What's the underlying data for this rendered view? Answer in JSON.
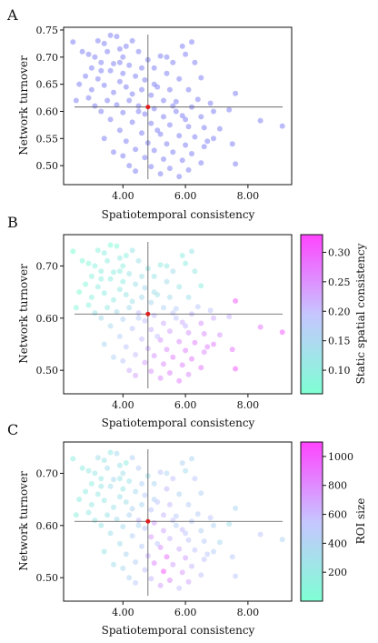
{
  "chart_data": [
    {
      "panel_label": "A",
      "type": "scatter",
      "xlabel": "Spatiotemporal consistency",
      "ylabel": "Network turnover",
      "xlim": [
        2.1,
        9.4
      ],
      "ylim": [
        0.465,
        0.755
      ],
      "xticks": [
        4.0,
        6.0,
        8.0
      ],
      "xtick_labels": [
        "4.00",
        "6.00",
        "8.00"
      ],
      "yticks": [
        0.5,
        0.55,
        0.6,
        0.65,
        0.7,
        0.75
      ],
      "ytick_labels": [
        "0.50",
        "0.55",
        "0.60",
        "0.65",
        "0.70",
        "0.75"
      ],
      "point_color": "#3b3bf0",
      "mean_marker": {
        "x": 4.8,
        "y": 0.608,
        "color": "#e02020"
      },
      "crosshair": {
        "x": 4.8,
        "y": 0.608,
        "color": "#555555"
      }
    },
    {
      "panel_label": "B",
      "type": "scatter",
      "xlabel": "Spatiotemporal consistency",
      "ylabel": "Network turnover",
      "xlim": [
        2.1,
        9.4
      ],
      "ylim": [
        0.455,
        0.76
      ],
      "xticks": [
        4.0,
        6.0,
        8.0
      ],
      "xtick_labels": [
        "4.00",
        "6.00",
        "8.00"
      ],
      "yticks": [
        0.5,
        0.6,
        0.7
      ],
      "ytick_labels": [
        "0.50",
        "0.60",
        "0.70"
      ],
      "mean_marker": {
        "x": 4.8,
        "y": 0.608,
        "color": "#e02020"
      },
      "crosshair": {
        "x": 4.8,
        "y": 0.608,
        "color": "#555555"
      },
      "colorbar": {
        "label": "Static spatial consistency",
        "range": [
          0.06,
          0.33
        ],
        "ticks": [
          0.1,
          0.15,
          0.2,
          0.25,
          0.3
        ],
        "tick_labels": [
          "0.10",
          "0.15",
          "0.20",
          "0.25",
          "0.30"
        ],
        "color_low": "#7fffd4",
        "color_high": "#ff44ff"
      }
    },
    {
      "panel_label": "C",
      "type": "scatter",
      "xlabel": "Spatiotemporal consistency",
      "ylabel": "Network turnover",
      "xlim": [
        2.1,
        9.4
      ],
      "ylim": [
        0.455,
        0.76
      ],
      "xticks": [
        4.0,
        6.0,
        8.0
      ],
      "xtick_labels": [
        "4.00",
        "6.00",
        "8.00"
      ],
      "yticks": [
        0.5,
        0.6,
        0.7
      ],
      "ytick_labels": [
        "0.50",
        "0.60",
        "0.70"
      ],
      "mean_marker": {
        "x": 4.8,
        "y": 0.608,
        "color": "#e02020"
      },
      "crosshair": {
        "x": 4.8,
        "y": 0.608,
        "color": "#555555"
      },
      "colorbar": {
        "label": "ROI size",
        "range": [
          0,
          1100
        ],
        "ticks": [
          200,
          400,
          600,
          800,
          1000
        ],
        "tick_labels": [
          "200",
          "400",
          "600",
          "800",
          "1000"
        ],
        "color_low": "#7fffd4",
        "color_high": "#ff44ff"
      }
    }
  ],
  "scatter_points": [
    [
      2.4,
      0.728,
      0.06,
      150
    ],
    [
      3.2,
      0.73,
      0.09,
      300
    ],
    [
      3.4,
      0.725,
      0.1,
      250
    ],
    [
      3.6,
      0.74,
      0.07,
      200
    ],
    [
      3.8,
      0.738,
      0.08,
      350
    ],
    [
      4.3,
      0.73,
      0.12,
      420
    ],
    [
      4.1,
      0.72,
      0.09,
      180
    ],
    [
      3.9,
      0.715,
      0.11,
      260
    ],
    [
      3.5,
      0.71,
      0.1,
      310
    ],
    [
      4.5,
      0.71,
      0.13,
      450
    ],
    [
      2.9,
      0.705,
      0.08,
      200
    ],
    [
      3.1,
      0.7,
      0.09,
      230
    ],
    [
      4.0,
      0.7,
      0.1,
      300
    ],
    [
      5.2,
      0.702,
      0.11,
      520
    ],
    [
      5.9,
      0.72,
      0.1,
      400
    ],
    [
      6.2,
      0.728,
      0.12,
      380
    ],
    [
      6.0,
      0.705,
      0.1,
      330
    ],
    [
      5.6,
      0.69,
      0.14,
      560
    ],
    [
      3.3,
      0.69,
      0.1,
      210
    ],
    [
      3.7,
      0.688,
      0.1,
      350
    ],
    [
      4.2,
      0.685,
      0.12,
      270
    ],
    [
      4.6,
      0.68,
      0.13,
      420
    ],
    [
      3.0,
      0.68,
      0.09,
      180
    ],
    [
      5.0,
      0.68,
      0.12,
      380
    ],
    [
      6.3,
      0.69,
      0.11,
      500
    ],
    [
      3.6,
      0.675,
      0.1,
      300
    ],
    [
      4.0,
      0.67,
      0.1,
      250
    ],
    [
      2.8,
      0.665,
      0.08,
      160
    ],
    [
      5.4,
      0.67,
      0.14,
      600
    ],
    [
      4.4,
      0.665,
      0.13,
      340
    ],
    [
      3.2,
      0.66,
      0.1,
      230
    ],
    [
      3.9,
      0.655,
      0.11,
      280
    ],
    [
      4.7,
      0.658,
      0.15,
      480
    ],
    [
      5.8,
      0.66,
      0.12,
      400
    ],
    [
      6.5,
      0.662,
      0.1,
      420
    ],
    [
      2.6,
      0.65,
      0.07,
      150
    ],
    [
      3.4,
      0.648,
      0.1,
      230
    ],
    [
      4.1,
      0.645,
      0.12,
      300
    ],
    [
      5.1,
      0.645,
      0.13,
      520
    ],
    [
      5.5,
      0.64,
      0.14,
      580
    ],
    [
      6.1,
      0.64,
      0.13,
      460
    ],
    [
      3.0,
      0.64,
      0.09,
      210
    ],
    [
      3.7,
      0.635,
      0.11,
      270
    ],
    [
      4.3,
      0.632,
      0.13,
      400
    ],
    [
      4.9,
      0.63,
      0.15,
      520
    ],
    [
      2.5,
      0.62,
      0.08,
      140
    ],
    [
      2.9,
      0.625,
      0.09,
      200
    ],
    [
      3.5,
      0.62,
      0.11,
      260
    ],
    [
      4.2,
      0.62,
      0.14,
      390
    ],
    [
      5.3,
      0.62,
      0.16,
      600
    ],
    [
      5.7,
      0.618,
      0.17,
      480
    ],
    [
      6.4,
      0.622,
      0.18,
      450
    ],
    [
      6.8,
      0.615,
      0.19,
      520
    ],
    [
      7.6,
      0.633,
      0.3,
      380
    ],
    [
      3.1,
      0.61,
      0.12,
      230
    ],
    [
      3.8,
      0.612,
      0.14,
      320
    ],
    [
      4.5,
      0.61,
      0.2,
      600
    ],
    [
      5.0,
      0.605,
      0.2,
      700
    ],
    [
      5.6,
      0.61,
      0.19,
      560
    ],
    [
      6.2,
      0.608,
      0.21,
      480
    ],
    [
      6.9,
      0.6,
      0.22,
      410
    ],
    [
      7.4,
      0.603,
      0.21,
      300
    ],
    [
      8.4,
      0.583,
      0.27,
      520
    ],
    [
      9.1,
      0.573,
      0.3,
      400
    ],
    [
      3.3,
      0.6,
      0.14,
      240
    ],
    [
      4.0,
      0.598,
      0.16,
      330
    ],
    [
      4.7,
      0.595,
      0.2,
      500
    ],
    [
      5.3,
      0.59,
      0.22,
      660
    ],
    [
      5.9,
      0.592,
      0.22,
      580
    ],
    [
      6.5,
      0.59,
      0.24,
      440
    ],
    [
      3.6,
      0.585,
      0.15,
      290
    ],
    [
      4.3,
      0.58,
      0.19,
      420
    ],
    [
      4.9,
      0.578,
      0.21,
      720
    ],
    [
      5.5,
      0.575,
      0.23,
      600
    ],
    [
      6.1,
      0.572,
      0.24,
      520
    ],
    [
      6.6,
      0.57,
      0.25,
      480
    ],
    [
      7.1,
      0.568,
      0.24,
      360
    ],
    [
      3.9,
      0.565,
      0.17,
      300
    ],
    [
      4.6,
      0.56,
      0.2,
      460
    ],
    [
      5.2,
      0.558,
      0.24,
      760
    ],
    [
      5.8,
      0.555,
      0.25,
      640
    ],
    [
      6.3,
      0.553,
      0.26,
      540
    ],
    [
      6.9,
      0.55,
      0.26,
      460
    ],
    [
      3.4,
      0.55,
      0.15,
      250
    ],
    [
      4.1,
      0.545,
      0.19,
      380
    ],
    [
      4.8,
      0.542,
      0.22,
      620
    ],
    [
      5.4,
      0.54,
      0.25,
      900
    ],
    [
      6.0,
      0.538,
      0.26,
      700
    ],
    [
      6.6,
      0.535,
      0.25,
      560
    ],
    [
      7.5,
      0.54,
      0.27,
      480
    ],
    [
      4.4,
      0.53,
      0.2,
      430
    ],
    [
      5.0,
      0.528,
      0.24,
      800
    ],
    [
      5.6,
      0.525,
      0.26,
      680
    ],
    [
      6.2,
      0.522,
      0.27,
      600
    ],
    [
      4.0,
      0.518,
      0.19,
      360
    ],
    [
      4.7,
      0.515,
      0.23,
      560
    ],
    [
      5.3,
      0.512,
      0.25,
      1000
    ],
    [
      5.9,
      0.51,
      0.26,
      720
    ],
    [
      6.5,
      0.505,
      0.27,
      540
    ],
    [
      7.6,
      0.503,
      0.3,
      500
    ],
    [
      4.2,
      0.5,
      0.22,
      420
    ],
    [
      4.9,
      0.498,
      0.24,
      600
    ],
    [
      5.5,
      0.495,
      0.26,
      800
    ],
    [
      6.1,
      0.492,
      0.25,
      660
    ],
    [
      4.4,
      0.49,
      0.23,
      480
    ],
    [
      5.2,
      0.485,
      0.25,
      700
    ],
    [
      5.8,
      0.48,
      0.26,
      560
    ],
    [
      3.7,
      0.525,
      0.16,
      300
    ],
    [
      5.1,
      0.565,
      0.2,
      500
    ],
    [
      5.7,
      0.6,
      0.19,
      450
    ],
    [
      4.6,
      0.64,
      0.14,
      360
    ],
    [
      3.3,
      0.675,
      0.1,
      220
    ],
    [
      4.8,
      0.695,
      0.12,
      300
    ],
    [
      5.4,
      0.7,
      0.11,
      380
    ],
    [
      2.7,
      0.71,
      0.08,
      170
    ],
    [
      3.9,
      0.69,
      0.1,
      240
    ],
    [
      5.0,
      0.65,
      0.13,
      420
    ],
    [
      6.0,
      0.585,
      0.21,
      520
    ],
    [
      6.7,
      0.545,
      0.26,
      500
    ],
    [
      4.5,
      0.6,
      0.17,
      380
    ]
  ]
}
